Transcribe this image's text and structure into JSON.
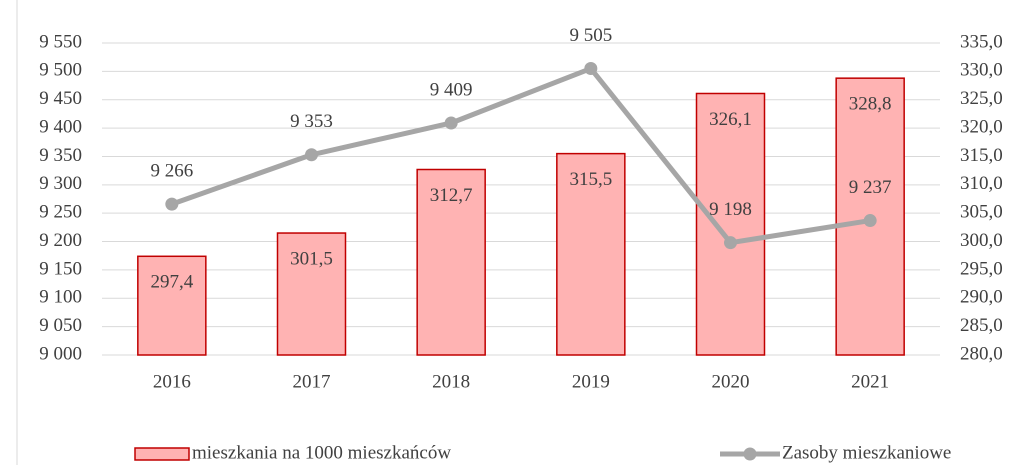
{
  "chart_data": {
    "type": "combo",
    "categories": [
      "2016",
      "2017",
      "2018",
      "2019",
      "2020",
      "2021"
    ],
    "series": [
      {
        "name": "mieszkania na 1000 mieszkańców",
        "type": "bar",
        "axis": "y2",
        "color": "#ffb3b3",
        "edge_color": "#c00000",
        "values": [
          297.4,
          301.5,
          312.7,
          315.5,
          326.1,
          328.8
        ],
        "value_labels": [
          "297,4",
          "301,5",
          "312,7",
          "315,5",
          "326,1",
          "328,8"
        ]
      },
      {
        "name": "Zasoby mieszkaniowe",
        "type": "line",
        "color": "#a6a6a6",
        "values": [
          9266,
          9353,
          9409,
          9505,
          9198,
          9237
        ],
        "value_labels": [
          "9 266",
          "9 353",
          "9 409",
          "9 505",
          "9 198",
          "9 237"
        ]
      }
    ],
    "ylim": [
      9000,
      9550
    ],
    "yticks": [
      {
        "value": 9000,
        "label": "9 000"
      },
      {
        "value": 9050,
        "label": "9 050"
      },
      {
        "value": 9100,
        "label": "9 100"
      },
      {
        "value": 9150,
        "label": "9 150"
      },
      {
        "value": 9200,
        "label": "9 200"
      },
      {
        "value": 9250,
        "label": "9 250"
      },
      {
        "value": 9300,
        "label": "9 300"
      },
      {
        "value": 9350,
        "label": "9 350"
      },
      {
        "value": 9400,
        "label": "9 400"
      },
      {
        "value": 9450,
        "label": "9 450"
      },
      {
        "value": 9500,
        "label": "9 500"
      },
      {
        "value": 9550,
        "label": "9 550"
      }
    ],
    "y2lim": [
      280,
      335
    ],
    "y2ticks": [
      {
        "value": 280,
        "label": "280,0"
      },
      {
        "value": 285,
        "label": "285,0"
      },
      {
        "value": 290,
        "label": "290,0"
      },
      {
        "value": 295,
        "label": "295,0"
      },
      {
        "value": 300,
        "label": "300,0"
      },
      {
        "value": 305,
        "label": "305,0"
      },
      {
        "value": 310,
        "label": "310,0"
      },
      {
        "value": 315,
        "label": "315,0"
      },
      {
        "value": 320,
        "label": "320,0"
      },
      {
        "value": 325,
        "label": "325,0"
      },
      {
        "value": 330,
        "label": "330,0"
      },
      {
        "value": 335,
        "label": "335,0"
      }
    ],
    "grid": true
  }
}
